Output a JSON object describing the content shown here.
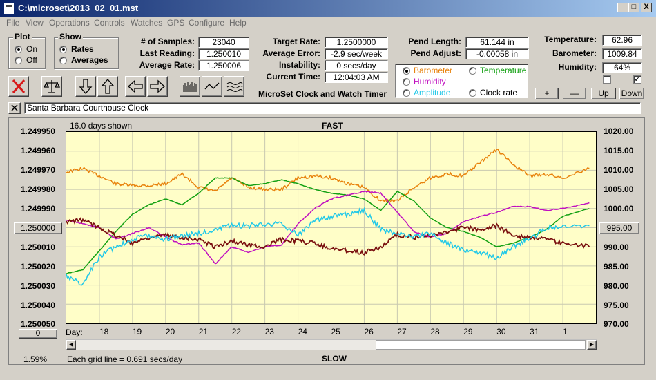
{
  "window": {
    "title": "C:\\microset\\2013_02_01.mst",
    "buttons": {
      "minimize": "_",
      "maximize": "□",
      "close": "X"
    }
  },
  "menu": [
    "File",
    "View",
    "Operations",
    "Controls",
    "Watches",
    "GPS",
    "Configure",
    "Help"
  ],
  "plot_group": {
    "label": "Plot",
    "options": [
      "On",
      "Off"
    ],
    "selected": "On"
  },
  "show_group": {
    "label": "Show",
    "options": [
      "Rates",
      "Averages"
    ],
    "selected": "Rates"
  },
  "stats": {
    "samples_label": "# of Samples:",
    "samples": "23040",
    "last_reading_label": "Last Reading:",
    "last_reading": "1.250010",
    "average_rate_label": "Average Rate:",
    "average_rate": "1.250006",
    "target_rate_label": "Target Rate:",
    "target_rate": "1.2500000",
    "average_error_label": "Average Error:",
    "average_error": "-2.9 sec/week",
    "instability_label": "Instability:",
    "instability": "0 secs/day",
    "current_time_label": "Current Time:",
    "current_time": "12:04:03 AM",
    "pend_length_label": "Pend Length:",
    "pend_length": "61.144 in",
    "pend_adjust_label": "Pend Adjust:",
    "pend_adjust": "-0.00058 in",
    "temperature_label": "Temperature:",
    "temperature": "62.96",
    "barometer_label": "Barometer:",
    "barometer": "1009.84",
    "humidity_label": "Humidity:",
    "humidity": "64%"
  },
  "app_caption": "MicroSet Clock and Watch Timer",
  "series_select": {
    "options": [
      {
        "label": "Barometer",
        "color": "#e8820c",
        "selected": true
      },
      {
        "label": "Temperature",
        "color": "#12a012",
        "selected": false
      },
      {
        "label": "Humidity",
        "color": "#c010c0",
        "selected": false
      },
      {
        "label": "Clock rate",
        "color": "#000000",
        "selected": false
      },
      {
        "label": "Amplitude",
        "color": "#20c8e8",
        "selected": false
      }
    ]
  },
  "adjust_buttons": [
    "+",
    "—",
    "Up",
    "Down"
  ],
  "checks": {
    "left": "",
    "right": "✓"
  },
  "clock_name": "Santa Barbara Courthouse Clock",
  "graph": {
    "days_shown": "16.0 days shown",
    "fast_label": "FAST",
    "slow_label": "SLOW",
    "grid_note": "Each grid line = 0.691 secs/day",
    "percent": "1.59%",
    "left_scale_button": "1.250000",
    "right_scale_button": "995.00",
    "bottom_left_button": "0",
    "day_label": "Day:"
  },
  "chart_data": {
    "type": "line",
    "title": "",
    "xlabel": "Day:",
    "x_ticks": [
      "18",
      "19",
      "20",
      "21",
      "22",
      "23",
      "24",
      "25",
      "26",
      "27",
      "28",
      "29",
      "30",
      "31",
      "1"
    ],
    "left_axis": {
      "ticks": [
        "1.249950",
        "1.249960",
        "1.249970",
        "1.249980",
        "1.249990",
        "1.250000",
        "1.250010",
        "1.250020",
        "1.250030",
        "1.250040",
        "1.250050"
      ],
      "range": [
        1.24995,
        1.25005
      ],
      "inverted": true
    },
    "right_axis": {
      "ticks": [
        "1020.00",
        "1015.00",
        "1010.00",
        "1005.00",
        "1000.00",
        "995.00",
        "990.00",
        "985.00",
        "980.00",
        "975.00",
        "970.00"
      ],
      "range": [
        970,
        1020
      ]
    },
    "grid": true,
    "x": [
      17.0,
      17.5,
      18.0,
      18.5,
      19.0,
      19.5,
      20.0,
      20.5,
      21.0,
      21.5,
      22.0,
      22.5,
      23.0,
      23.5,
      24.0,
      24.5,
      25.0,
      25.5,
      26.0,
      26.5,
      27.0,
      27.5,
      28.0,
      28.5,
      29.0,
      29.5,
      30.0,
      30.5,
      31.0,
      31.5,
      32.0,
      32.8
    ],
    "series": [
      {
        "name": "Barometer",
        "color": "#e8820c",
        "axis": "right",
        "values": [
          1009.5,
          1010.5,
          1008.5,
          1006.5,
          1006.0,
          1006.0,
          1006.5,
          1009.0,
          1005.5,
          1004.5,
          1008.0,
          1005.5,
          1005.0,
          1005.0,
          1008.0,
          1008.5,
          1008.0,
          1006.5,
          1005.5,
          1002.0,
          1002.0,
          1005.5,
          1008.0,
          1009.0,
          1008.5,
          1012.0,
          1015.5,
          1011.5,
          1008.5,
          1009.0,
          1008.0,
          1010.5
        ]
      },
      {
        "name": "Temperature",
        "color": "#12a012",
        "axis": "left",
        "values": [
          1.250024,
          1.250022,
          1.250012,
          1.250002,
          1.249993,
          1.249988,
          1.249985,
          1.249988,
          1.249982,
          1.249974,
          1.249974,
          1.249978,
          1.249977,
          1.249975,
          1.249977,
          1.24998,
          1.249982,
          1.249983,
          1.249985,
          1.249991,
          1.249981,
          1.249986,
          1.249995,
          1.25,
          1.250002,
          1.250005,
          1.25001,
          1.250008,
          1.250005,
          1.250001,
          1.249994,
          1.24999
        ]
      },
      {
        "name": "Humidity",
        "color": "#c010c0",
        "axis": "left",
        "values": [
          1.249996,
          1.249998,
          1.25,
          1.250006,
          1.250003,
          1.25,
          1.250005,
          1.250009,
          1.250008,
          1.250019,
          1.25001,
          1.250013,
          1.25001,
          1.250009,
          1.249998,
          1.24999,
          1.249985,
          1.249983,
          1.249981,
          1.249982,
          1.249992,
          1.250002,
          1.250005,
          1.250003,
          1.249997,
          1.249994,
          1.249992,
          1.249989,
          1.249989,
          1.249991,
          1.24999,
          1.249987
        ]
      },
      {
        "name": "Clock rate",
        "color": "#7a1010",
        "axis": "left",
        "values": [
          1.249997,
          1.249996,
          1.25,
          1.250004,
          1.250008,
          1.250005,
          1.250004,
          1.250005,
          1.250006,
          1.25001,
          1.250007,
          1.250009,
          1.25001,
          1.250006,
          1.250007,
          1.250008,
          1.250011,
          1.250012,
          1.250013,
          1.25001,
          1.250004,
          1.250005,
          1.250004,
          1.250002,
          1.25,
          1.250001,
          1.249999,
          1.250004,
          1.250005,
          1.250006,
          1.250008,
          1.25001
        ]
      },
      {
        "name": "Amplitude",
        "color": "#20c8e8",
        "axis": "left",
        "values": [
          1.250025,
          1.25003,
          1.250015,
          1.25001,
          1.250006,
          1.250004,
          1.250006,
          1.250004,
          1.250003,
          1.250001,
          1.249999,
          1.249999,
          1.249998,
          1.249998,
          1.250004,
          1.249996,
          1.249994,
          1.249993,
          1.249991,
          1.250001,
          1.250003,
          1.250005,
          1.250003,
          1.250008,
          1.250012,
          1.250013,
          1.250016,
          1.25001,
          1.250006,
          1.25,
          1.249999,
          1.249999
        ]
      }
    ]
  }
}
